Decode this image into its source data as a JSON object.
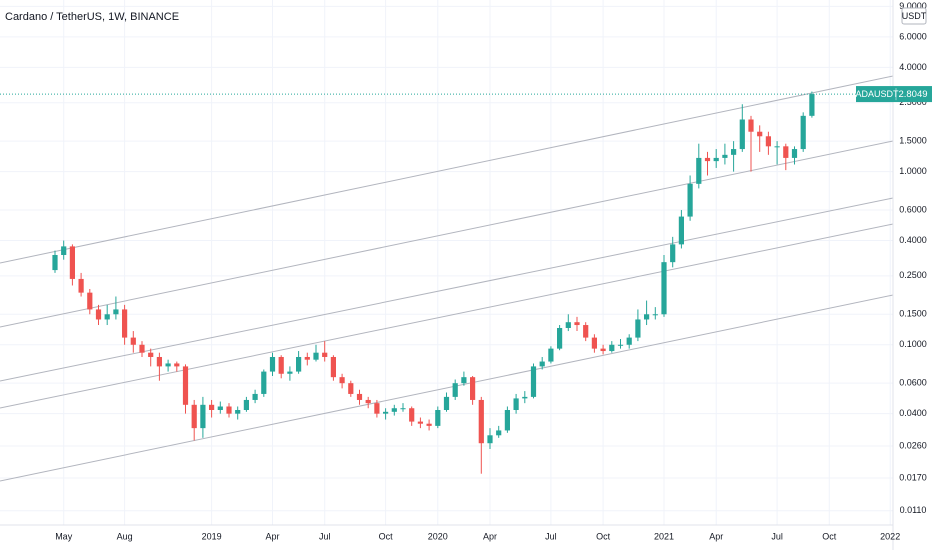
{
  "chart_data": {
    "type": "candlestick",
    "title": "Cardano / TetherUS, 1W, BINANCE",
    "currency": "USDT",
    "symbol": "ADAUSDT",
    "last_price": 2.8049,
    "log_scale": true,
    "grid": true,
    "up_color": "#26a69a",
    "down_color": "#ef5350",
    "categories": [
      null,
      "May",
      null,
      null,
      null,
      null,
      null,
      null,
      "Aug",
      null,
      null,
      null,
      null,
      null,
      null,
      null,
      null,
      null,
      "2019",
      null,
      null,
      null,
      null,
      null,
      null,
      "Apr",
      null,
      null,
      null,
      null,
      null,
      "Jul",
      null,
      null,
      null,
      null,
      null,
      null,
      "Oct",
      null,
      null,
      null,
      null,
      null,
      "2020",
      null,
      null,
      null,
      null,
      null,
      "Apr",
      null,
      null,
      null,
      null,
      null,
      null,
      "Jul",
      null,
      null,
      null,
      null,
      null,
      "Oct",
      null,
      null,
      null,
      null,
      null,
      null,
      "2021",
      null,
      null,
      null,
      null,
      null,
      "Apr",
      null,
      null,
      null,
      null,
      null,
      null,
      "Jul",
      null,
      null,
      null,
      null,
      null,
      "Oct",
      null,
      null,
      null,
      null,
      null,
      null,
      "2022"
    ],
    "open": [
      0.27,
      0.33,
      0.37,
      0.24,
      0.2,
      0.16,
      0.14,
      0.15,
      0.16,
      0.11,
      0.1,
      0.09,
      0.085,
      0.075,
      0.078,
      0.075,
      0.045,
      0.033,
      0.045,
      0.042,
      0.044,
      0.04,
      0.042,
      0.048,
      0.052,
      0.07,
      0.085,
      0.068,
      0.07,
      0.085,
      0.082,
      0.09,
      0.085,
      0.065,
      0.06,
      0.052,
      0.048,
      0.046,
      0.04,
      0.041,
      0.043,
      0.043,
      0.036,
      0.035,
      0.034,
      0.042,
      0.05,
      0.06,
      0.065,
      0.048,
      0.027,
      0.03,
      0.032,
      0.042,
      0.049,
      0.05,
      0.075,
      0.08,
      0.095,
      0.125,
      0.135,
      0.13,
      0.11,
      0.095,
      0.092,
      0.1,
      0.1,
      0.11,
      0.14,
      0.15,
      0.15,
      0.3,
      0.38,
      0.55,
      0.85,
      1.2,
      1.15,
      1.2,
      1.25,
      1.35,
      2.0,
      1.7,
      1.6,
      1.4,
      1.4,
      1.2,
      1.35,
      2.1,
      null,
      null,
      null,
      null,
      null,
      null,
      null,
      null,
      null
    ],
    "high": [
      0.35,
      0.4,
      0.38,
      0.26,
      0.21,
      0.17,
      0.17,
      0.19,
      0.17,
      0.12,
      0.105,
      0.095,
      0.09,
      0.082,
      0.08,
      0.077,
      0.048,
      0.05,
      0.048,
      0.047,
      0.046,
      0.044,
      0.05,
      0.055,
      0.072,
      0.09,
      0.087,
      0.075,
      0.092,
      0.09,
      0.1,
      0.105,
      0.087,
      0.068,
      0.062,
      0.055,
      0.05,
      0.048,
      0.043,
      0.045,
      0.046,
      0.044,
      0.038,
      0.037,
      0.044,
      0.053,
      0.063,
      0.07,
      0.066,
      0.05,
      0.033,
      0.034,
      0.044,
      0.052,
      0.054,
      0.078,
      0.085,
      0.098,
      0.13,
      0.15,
      0.145,
      0.135,
      0.115,
      0.1,
      0.105,
      0.108,
      0.115,
      0.16,
      0.18,
      0.165,
      0.33,
      0.42,
      0.6,
      0.95,
      1.45,
      1.3,
      1.35,
      1.45,
      1.5,
      2.45,
      2.1,
      1.85,
      1.7,
      1.5,
      1.45,
      1.4,
      2.2,
      2.9,
      null,
      null,
      null,
      null,
      null,
      null,
      null,
      null,
      null
    ],
    "low": [
      0.26,
      0.31,
      0.22,
      0.19,
      0.15,
      0.13,
      0.13,
      0.14,
      0.1,
      0.09,
      0.085,
      0.075,
      0.062,
      0.07,
      0.07,
      0.04,
      0.028,
      0.029,
      0.038,
      0.04,
      0.038,
      0.037,
      0.041,
      0.046,
      0.05,
      0.066,
      0.064,
      0.062,
      0.068,
      0.076,
      0.08,
      0.08,
      0.062,
      0.056,
      0.05,
      0.045,
      0.043,
      0.038,
      0.037,
      0.039,
      0.041,
      0.034,
      0.033,
      0.032,
      0.033,
      0.041,
      0.048,
      0.058,
      0.045,
      0.018,
      0.025,
      0.029,
      0.031,
      0.04,
      0.046,
      0.049,
      0.072,
      0.078,
      0.093,
      0.12,
      0.12,
      0.105,
      0.09,
      0.088,
      0.09,
      0.095,
      0.095,
      0.105,
      0.13,
      0.14,
      0.145,
      0.28,
      0.36,
      0.52,
      0.8,
      0.95,
      1.05,
      1.1,
      1.0,
      1.3,
      1.0,
      1.3,
      1.25,
      1.1,
      1.02,
      1.1,
      1.3,
      2.05,
      null,
      null,
      null,
      null,
      null,
      null,
      null,
      null,
      null
    ],
    "close": [
      0.33,
      0.37,
      0.24,
      0.2,
      0.16,
      0.14,
      0.15,
      0.16,
      0.11,
      0.1,
      0.09,
      0.085,
      0.075,
      0.078,
      0.075,
      0.045,
      0.033,
      0.045,
      0.042,
      0.044,
      0.04,
      0.042,
      0.048,
      0.052,
      0.07,
      0.085,
      0.068,
      0.07,
      0.085,
      0.082,
      0.09,
      0.085,
      0.065,
      0.06,
      0.052,
      0.048,
      0.046,
      0.04,
      0.041,
      0.043,
      0.043,
      0.036,
      0.035,
      0.034,
      0.042,
      0.05,
      0.06,
      0.065,
      0.048,
      0.027,
      0.03,
      0.032,
      0.042,
      0.049,
      0.05,
      0.075,
      0.08,
      0.095,
      0.125,
      0.135,
      0.13,
      0.11,
      0.095,
      0.092,
      0.1,
      0.1,
      0.11,
      0.14,
      0.15,
      0.15,
      0.3,
      0.38,
      0.55,
      0.85,
      1.2,
      1.15,
      1.2,
      1.25,
      1.35,
      2.0,
      1.7,
      1.6,
      1.4,
      1.4,
      1.2,
      1.35,
      2.1,
      2.8049,
      null,
      null,
      null,
      null,
      null,
      null,
      null,
      null,
      null
    ],
    "ylim": [
      0.0091,
      9.8
    ],
    "yticks": [
      {
        "value": 9,
        "label": "9.0000"
      },
      {
        "value": 6,
        "label": "6.0000"
      },
      {
        "value": 4,
        "label": "4.0000"
      },
      {
        "value": 2.5,
        "label": "2.5000"
      },
      {
        "value": 1.5,
        "label": "1.5000"
      },
      {
        "value": 1,
        "label": "1.0000"
      },
      {
        "value": 0.6,
        "label": "0.6000"
      },
      {
        "value": 0.4,
        "label": "0.4000"
      },
      {
        "value": 0.25,
        "label": "0.2500"
      },
      {
        "value": 0.15,
        "label": "0.1500"
      },
      {
        "value": 0.1,
        "label": "0.1000"
      },
      {
        "value": 0.06,
        "label": "0.0600"
      },
      {
        "value": 0.04,
        "label": "0.0400"
      },
      {
        "value": 0.026,
        "label": "0.0260"
      },
      {
        "value": 0.017,
        "label": "0.0170"
      },
      {
        "value": 0.011,
        "label": "0.0110"
      }
    ]
  }
}
